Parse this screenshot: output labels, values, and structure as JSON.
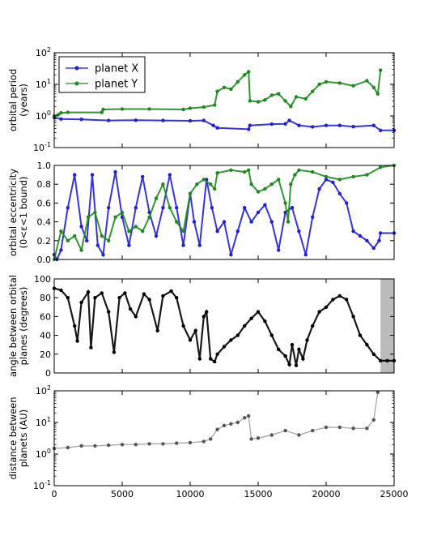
{
  "figure": {
    "background": "#ffffff",
    "axis_color": "#000000"
  },
  "colors": {
    "planet_x": "#1f1fd6",
    "planet_y": "#1f8a1f",
    "black": "#000000",
    "gray": "#8c8c8c"
  },
  "chart_data": [
    {
      "type": "line",
      "ylabel_lines": [
        "orbital period",
        "(years)"
      ],
      "xlim": [
        0,
        25000
      ],
      "ylim": [
        0.1,
        100
      ],
      "yscale": "log",
      "yticks": [
        "10^-1",
        "10^0",
        "10^1",
        "10^2"
      ],
      "legend": {
        "placement": "top-left",
        "entries": [
          "planet X",
          "planet Y"
        ]
      },
      "series": [
        {
          "name": "planet X",
          "color": "#1f1fd6",
          "x": [
            0,
            500,
            2000,
            4000,
            6000,
            8000,
            10000,
            11000,
            11700,
            12000,
            14300,
            14400,
            16000,
            17000,
            17300,
            18000,
            19000,
            20000,
            21000,
            22000,
            23500,
            24000,
            25000
          ],
          "y": [
            0.9,
            0.8,
            0.78,
            0.72,
            0.73,
            0.72,
            0.7,
            0.72,
            0.5,
            0.42,
            0.38,
            0.5,
            0.55,
            0.56,
            0.72,
            0.5,
            0.45,
            0.5,
            0.5,
            0.46,
            0.5,
            0.35,
            0.35
          ]
        },
        {
          "name": "planet Y",
          "color": "#1f8a1f",
          "x": [
            0,
            300,
            500,
            1000,
            3500,
            3600,
            5000,
            7000,
            9500,
            10000,
            11000,
            11800,
            12000,
            12500,
            13000,
            13500,
            14000,
            14300,
            14400,
            15000,
            15500,
            16000,
            16500,
            17000,
            17400,
            17800,
            18500,
            19000,
            19500,
            20000,
            21000,
            22000,
            23000,
            23500,
            23800,
            24000
          ],
          "y": [
            1.0,
            1.1,
            1.25,
            1.3,
            1.3,
            1.6,
            1.65,
            1.65,
            1.6,
            1.75,
            1.9,
            2.2,
            6.0,
            8.0,
            7.0,
            12.0,
            20.0,
            25.0,
            3.0,
            2.8,
            3.2,
            4.5,
            5.0,
            3.0,
            2.0,
            4.0,
            3.5,
            6.0,
            10.0,
            12.0,
            11.0,
            9.0,
            13.0,
            8.0,
            5.0,
            28.0
          ]
        }
      ]
    },
    {
      "type": "line",
      "ylabel_lines": [
        "orbital eccentricity",
        "(0<ε<1 bound)"
      ],
      "xlim": [
        0,
        25000
      ],
      "ylim": [
        0,
        1
      ],
      "yticks": [
        "0.0",
        "0.2",
        "0.4",
        "0.6",
        "0.8",
        "1.0"
      ],
      "series": [
        {
          "name": "planet X",
          "color": "#1f1fd6",
          "x": [
            0,
            200,
            500,
            1000,
            1500,
            2000,
            2400,
            2800,
            3200,
            3600,
            4000,
            4500,
            5000,
            5500,
            6000,
            6500,
            7000,
            7500,
            8000,
            8500,
            9000,
            9500,
            10000,
            10300,
            10700,
            11200,
            11600,
            12000,
            12500,
            13000,
            13500,
            14000,
            14500,
            15000,
            15500,
            16000,
            16500,
            17000,
            17500,
            18000,
            18500,
            19000,
            19500,
            20000,
            20500,
            21000,
            21500,
            22000,
            22500,
            23000,
            23500,
            23900,
            24000,
            25000
          ],
          "y": [
            0.05,
            0.0,
            0.1,
            0.55,
            0.9,
            0.35,
            0.2,
            0.9,
            0.15,
            0.05,
            0.55,
            0.93,
            0.45,
            0.15,
            0.55,
            0.88,
            0.5,
            0.25,
            0.55,
            0.9,
            0.55,
            0.15,
            0.7,
            0.4,
            0.15,
            0.85,
            0.55,
            0.3,
            0.4,
            0.05,
            0.3,
            0.55,
            0.4,
            0.5,
            0.58,
            0.4,
            0.1,
            0.5,
            0.55,
            0.3,
            0.05,
            0.45,
            0.75,
            0.85,
            0.82,
            0.7,
            0.6,
            0.3,
            0.25,
            0.2,
            0.12,
            0.2,
            0.28,
            0.28
          ]
        },
        {
          "name": "planet Y",
          "color": "#1f8a1f",
          "x": [
            0,
            500,
            1000,
            1500,
            2000,
            2500,
            3000,
            3500,
            4000,
            4500,
            5000,
            5500,
            6000,
            6500,
            7000,
            7500,
            8000,
            8500,
            9000,
            9500,
            10000,
            10500,
            11000,
            11500,
            11800,
            12000,
            13000,
            14000,
            14300,
            14500,
            15000,
            15500,
            16000,
            16500,
            17000,
            17200,
            17400,
            17700,
            18000,
            19000,
            20000,
            21000,
            22000,
            23000,
            24000,
            25000
          ],
          "y": [
            0.0,
            0.3,
            0.2,
            0.25,
            0.1,
            0.45,
            0.5,
            0.25,
            0.2,
            0.45,
            0.5,
            0.3,
            0.35,
            0.3,
            0.45,
            0.65,
            0.8,
            0.55,
            0.4,
            0.3,
            0.7,
            0.8,
            0.85,
            0.8,
            0.75,
            0.92,
            0.95,
            0.93,
            0.95,
            0.8,
            0.72,
            0.75,
            0.8,
            0.85,
            0.6,
            0.4,
            0.8,
            0.9,
            0.95,
            0.93,
            0.88,
            0.85,
            0.88,
            0.9,
            0.98,
            1.0
          ]
        }
      ]
    },
    {
      "type": "scatter",
      "ylabel_lines": [
        "angle between orbital",
        "planes (degrees)"
      ],
      "xlim": [
        0,
        25000
      ],
      "ylim": [
        0,
        100
      ],
      "yticks": [
        "0",
        "20",
        "40",
        "60",
        "80",
        "100"
      ],
      "shaded_region_x": [
        24000,
        25000
      ],
      "series": [
        {
          "name": "",
          "color": "#000000",
          "x": [
            0,
            500,
            1000,
            1500,
            1700,
            2000,
            2500,
            2700,
            3000,
            3500,
            4000,
            4400,
            4800,
            5200,
            5600,
            6000,
            6600,
            7000,
            7600,
            8000,
            8600,
            9000,
            9500,
            10000,
            10400,
            10700,
            11000,
            11200,
            11500,
            11800,
            12000,
            12500,
            13000,
            13500,
            14000,
            14500,
            15000,
            15500,
            16000,
            16500,
            17000,
            17300,
            17500,
            17800,
            18000,
            18300,
            18600,
            19000,
            19500,
            20000,
            20500,
            21000,
            21500,
            22000,
            22500,
            23000,
            23500,
            24000,
            24500,
            25000
          ],
          "y": [
            90,
            88,
            80,
            50,
            34,
            75,
            86,
            27,
            80,
            85,
            65,
            22,
            80,
            85,
            68,
            60,
            84,
            78,
            45,
            82,
            87,
            80,
            50,
            35,
            45,
            15,
            60,
            65,
            15,
            12,
            20,
            28,
            35,
            40,
            50,
            58,
            65,
            55,
            40,
            25,
            18,
            9,
            30,
            8,
            25,
            15,
            35,
            50,
            65,
            70,
            78,
            82,
            78,
            60,
            40,
            30,
            20,
            13,
            13,
            13
          ]
        }
      ]
    },
    {
      "type": "scatter",
      "ylabel_lines": [
        "distance between",
        "planets (AU)"
      ],
      "xlim": [
        0,
        25000
      ],
      "ylim": [
        0.1,
        100
      ],
      "yscale": "log",
      "yticks": [
        "10^-1",
        "10^0",
        "10^1",
        "10^2"
      ],
      "xticks": [
        "0",
        "5000",
        "10000",
        "15000",
        "20000",
        "25000"
      ],
      "series": [
        {
          "name": "",
          "color": "#000000",
          "x": [
            0,
            1000,
            2000,
            3000,
            4000,
            5000,
            6000,
            7000,
            8000,
            9000,
            10000,
            11000,
            11500,
            12000,
            12500,
            13000,
            13500,
            14000,
            14300,
            14500,
            15000,
            16000,
            17000,
            18000,
            19000,
            20000,
            21000,
            22000,
            23000,
            23500,
            23800
          ],
          "y": [
            1.5,
            1.6,
            1.8,
            1.8,
            1.9,
            2.0,
            2.0,
            2.1,
            2.1,
            2.2,
            2.3,
            2.5,
            3.0,
            6.0,
            8.0,
            9.0,
            10.0,
            14.0,
            16.0,
            3.0,
            3.2,
            4.0,
            5.5,
            4.0,
            5.5,
            7.0,
            7.0,
            6.5,
            6.5,
            12.0,
            90.0
          ]
        }
      ]
    }
  ]
}
